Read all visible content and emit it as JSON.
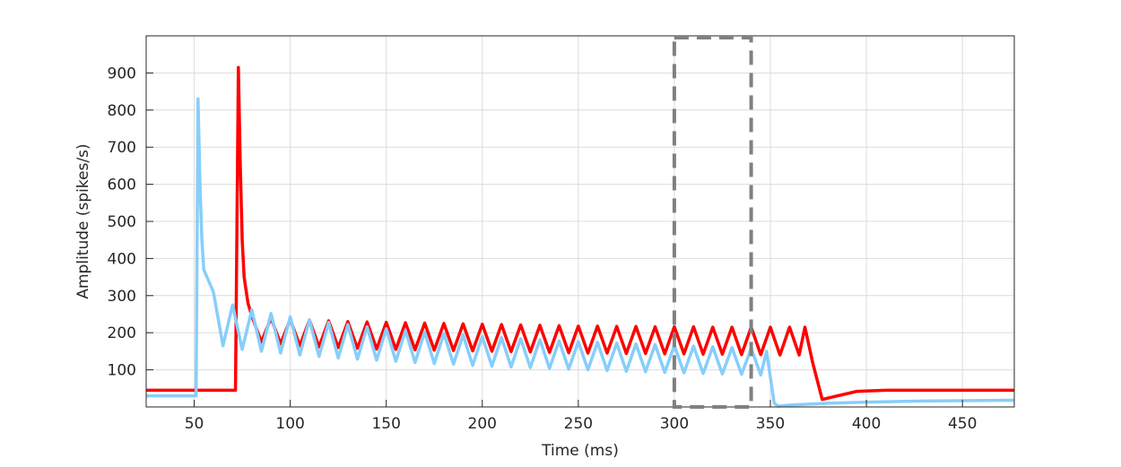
{
  "chart_data": {
    "type": "line",
    "x_label": "Time (ms)",
    "y_label": "Amplitude (spikes/s)",
    "xlim": [
      25,
      477
    ],
    "xticks": [
      50,
      100,
      150,
      200,
      250,
      300,
      350,
      400,
      450
    ],
    "ylim": [
      0,
      1000
    ],
    "yticks": [
      100,
      200,
      300,
      400,
      500,
      600,
      700,
      800,
      900
    ],
    "grid": true,
    "highlight_window": [
      300,
      340
    ],
    "series": [
      {
        "color": "#ff0000",
        "x": [
          25,
          71.5,
          73,
          74,
          75,
          76,
          78,
          80,
          85,
          90,
          95,
          100,
          105,
          110,
          115,
          120,
          125,
          130,
          135,
          140,
          145,
          150,
          155,
          160,
          165,
          170,
          175,
          180,
          185,
          190,
          195,
          200,
          205,
          210,
          215,
          220,
          225,
          230,
          235,
          240,
          245,
          250,
          255,
          260,
          265,
          270,
          275,
          280,
          285,
          290,
          295,
          300,
          305,
          310,
          315,
          320,
          325,
          330,
          335,
          340,
          345,
          350,
          355,
          360,
          365,
          368,
          372,
          377,
          385,
          395,
          410,
          477
        ],
        "values": [
          45,
          45,
          915,
          650,
          450,
          350,
          280,
          245,
          175,
          240,
          170,
          236,
          165,
          234,
          162,
          232,
          160,
          230,
          158,
          229,
          156,
          228,
          155,
          227,
          154,
          226,
          153,
          225,
          152,
          224,
          151,
          223,
          150,
          222,
          149,
          221,
          148,
          220,
          147,
          219,
          146,
          218,
          145,
          218,
          145,
          217,
          144,
          217,
          144,
          216,
          143,
          216,
          143,
          216,
          142,
          215,
          142,
          215,
          141,
          215,
          141,
          215,
          140,
          215,
          140,
          215,
          120,
          20,
          30,
          42,
          45,
          45
        ]
      },
      {
        "color": "#87cefa",
        "x": [
          25,
          51,
          52,
          53,
          54,
          55,
          60,
          65,
          70,
          75,
          80,
          85,
          90,
          95,
          100,
          105,
          110,
          115,
          120,
          125,
          130,
          135,
          140,
          145,
          150,
          155,
          160,
          165,
          170,
          175,
          180,
          185,
          190,
          195,
          200,
          205,
          210,
          215,
          220,
          225,
          230,
          235,
          240,
          245,
          250,
          255,
          260,
          265,
          270,
          275,
          280,
          285,
          290,
          295,
          300,
          305,
          310,
          315,
          320,
          325,
          330,
          335,
          340,
          345,
          348,
          350,
          352,
          354,
          360,
          380,
          400,
          430,
          477
        ],
        "values": [
          30,
          30,
          830,
          600,
          450,
          370,
          310,
          165,
          275,
          155,
          262,
          150,
          252,
          145,
          243,
          140,
          235,
          136,
          228,
          132,
          222,
          129,
          216,
          126,
          211,
          123,
          206,
          120,
          202,
          117,
          198,
          115,
          194,
          112,
          190,
          110,
          187,
          108,
          184,
          106,
          181,
          104,
          178,
          102,
          176,
          100,
          174,
          98,
          172,
          96,
          170,
          95,
          168,
          93,
          166,
          92,
          164,
          90,
          162,
          89,
          160,
          88,
          158,
          86,
          150,
          80,
          10,
          2,
          5,
          10,
          13,
          16,
          18
        ]
      }
    ]
  }
}
